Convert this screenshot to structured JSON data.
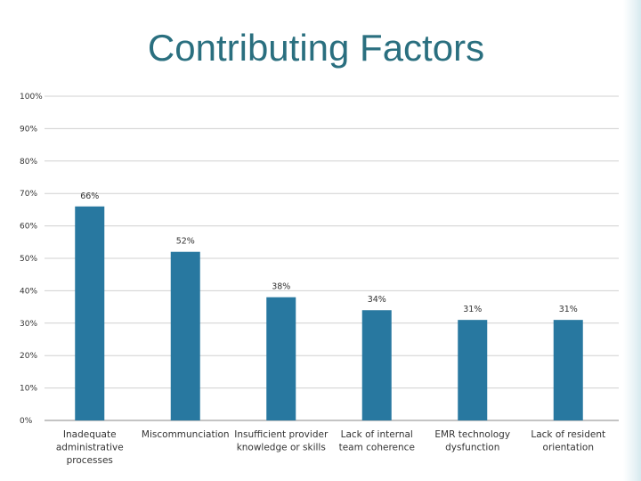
{
  "slide": {
    "title": "Contributing Factors"
  },
  "colors": {
    "bar": "#2878a0",
    "title": "#2a6f7f",
    "grid": "#d0d0d0",
    "axis": "#888888"
  },
  "chart_data": {
    "type": "bar",
    "title": "",
    "xlabel": "",
    "ylabel": "",
    "ylim": [
      0,
      100
    ],
    "grid": true,
    "y_ticks": [
      "0%",
      "10%",
      "20%",
      "30%",
      "40%",
      "50%",
      "60%",
      "70%",
      "80%",
      "90%",
      "100%"
    ],
    "categories": [
      [
        "Inadequate",
        "administrative",
        "processes"
      ],
      [
        "Miscommunciation"
      ],
      [
        "Insufficient provider",
        "knowledge or skills"
      ],
      [
        "Lack of internal",
        "team coherence"
      ],
      [
        "EMR technology",
        "dysfunction"
      ],
      [
        "Lack of resident",
        "orientation"
      ]
    ],
    "values": [
      66,
      52,
      38,
      34,
      31,
      31
    ],
    "data_labels": [
      "66%",
      "52%",
      "38%",
      "34%",
      "31%",
      "31%"
    ]
  }
}
